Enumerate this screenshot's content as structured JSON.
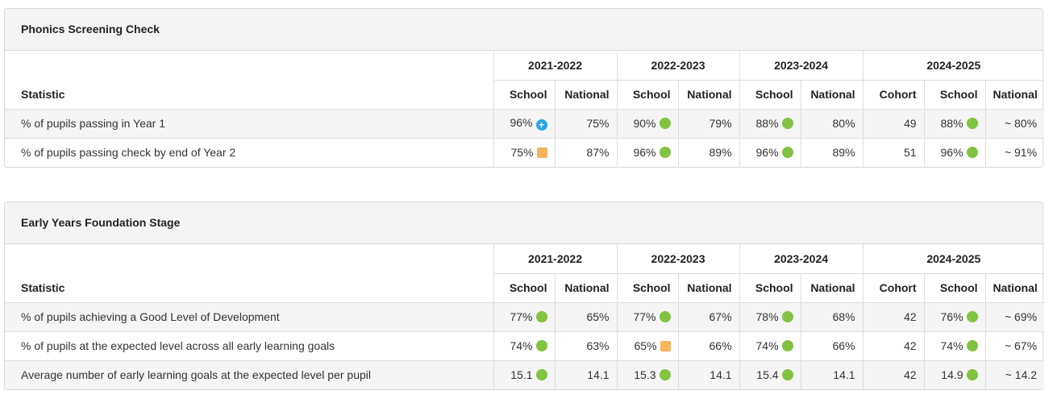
{
  "colors": {
    "green": "#82c341",
    "amber": "#f5b55a",
    "blue": "#27a8e0"
  },
  "phonics": {
    "title": "Phonics Screening Check",
    "header": {
      "statistic": "Statistic",
      "years": [
        "2021-2022",
        "2022-2023",
        "2023-2024",
        "2024-2025"
      ],
      "school": "School",
      "national": "National",
      "cohort": "Cohort"
    },
    "rows": [
      {
        "label": "% of pupils passing in Year 1",
        "y1": {
          "school": "96%",
          "ind": "above-icon",
          "national": "75%"
        },
        "y2": {
          "school": "90%",
          "ind": "green-circle-icon",
          "national": "79%"
        },
        "y3": {
          "school": "88%",
          "ind": "green-circle-icon",
          "national": "80%"
        },
        "y4": {
          "cohort": "49",
          "school": "88%",
          "ind": "green-circle-icon",
          "national": "~ 80%"
        }
      },
      {
        "label": "% of pupils passing check by end of Year 2",
        "y1": {
          "school": "75%",
          "ind": "amber-square-icon",
          "national": "87%"
        },
        "y2": {
          "school": "96%",
          "ind": "green-circle-icon",
          "national": "89%"
        },
        "y3": {
          "school": "96%",
          "ind": "green-circle-icon",
          "national": "89%"
        },
        "y4": {
          "cohort": "51",
          "school": "96%",
          "ind": "green-circle-icon",
          "national": "~ 91%"
        }
      }
    ]
  },
  "eyfs": {
    "title": "Early Years Foundation Stage",
    "header": {
      "statistic": "Statistic",
      "years": [
        "2021-2022",
        "2022-2023",
        "2023-2024",
        "2024-2025"
      ],
      "school": "School",
      "national": "National",
      "cohort": "Cohort"
    },
    "rows": [
      {
        "label": "% of pupils achieving a Good Level of Development",
        "y1": {
          "school": "77%",
          "ind": "green-circle-icon",
          "national": "65%"
        },
        "y2": {
          "school": "77%",
          "ind": "green-circle-icon",
          "national": "67%"
        },
        "y3": {
          "school": "78%",
          "ind": "green-circle-icon",
          "national": "68%"
        },
        "y4": {
          "cohort": "42",
          "school": "76%",
          "ind": "green-circle-icon",
          "national": "~ 69%"
        }
      },
      {
        "label": "% of pupils at the expected level across all early learning goals",
        "y1": {
          "school": "74%",
          "ind": "green-circle-icon",
          "national": "63%"
        },
        "y2": {
          "school": "65%",
          "ind": "amber-square-icon",
          "national": "66%"
        },
        "y3": {
          "school": "74%",
          "ind": "green-circle-icon",
          "national": "66%"
        },
        "y4": {
          "cohort": "42",
          "school": "74%",
          "ind": "green-circle-icon",
          "national": "~ 67%"
        }
      },
      {
        "label": "Average number of early learning goals at the expected level per pupil",
        "y1": {
          "school": "15.1",
          "ind": "green-circle-icon",
          "national": "14.1"
        },
        "y2": {
          "school": "15.3",
          "ind": "green-circle-icon",
          "national": "14.1"
        },
        "y3": {
          "school": "15.4",
          "ind": "green-circle-icon",
          "national": "14.1"
        },
        "y4": {
          "cohort": "42",
          "school": "14.9",
          "ind": "green-circle-icon",
          "national": "~ 14.2"
        }
      }
    ]
  }
}
